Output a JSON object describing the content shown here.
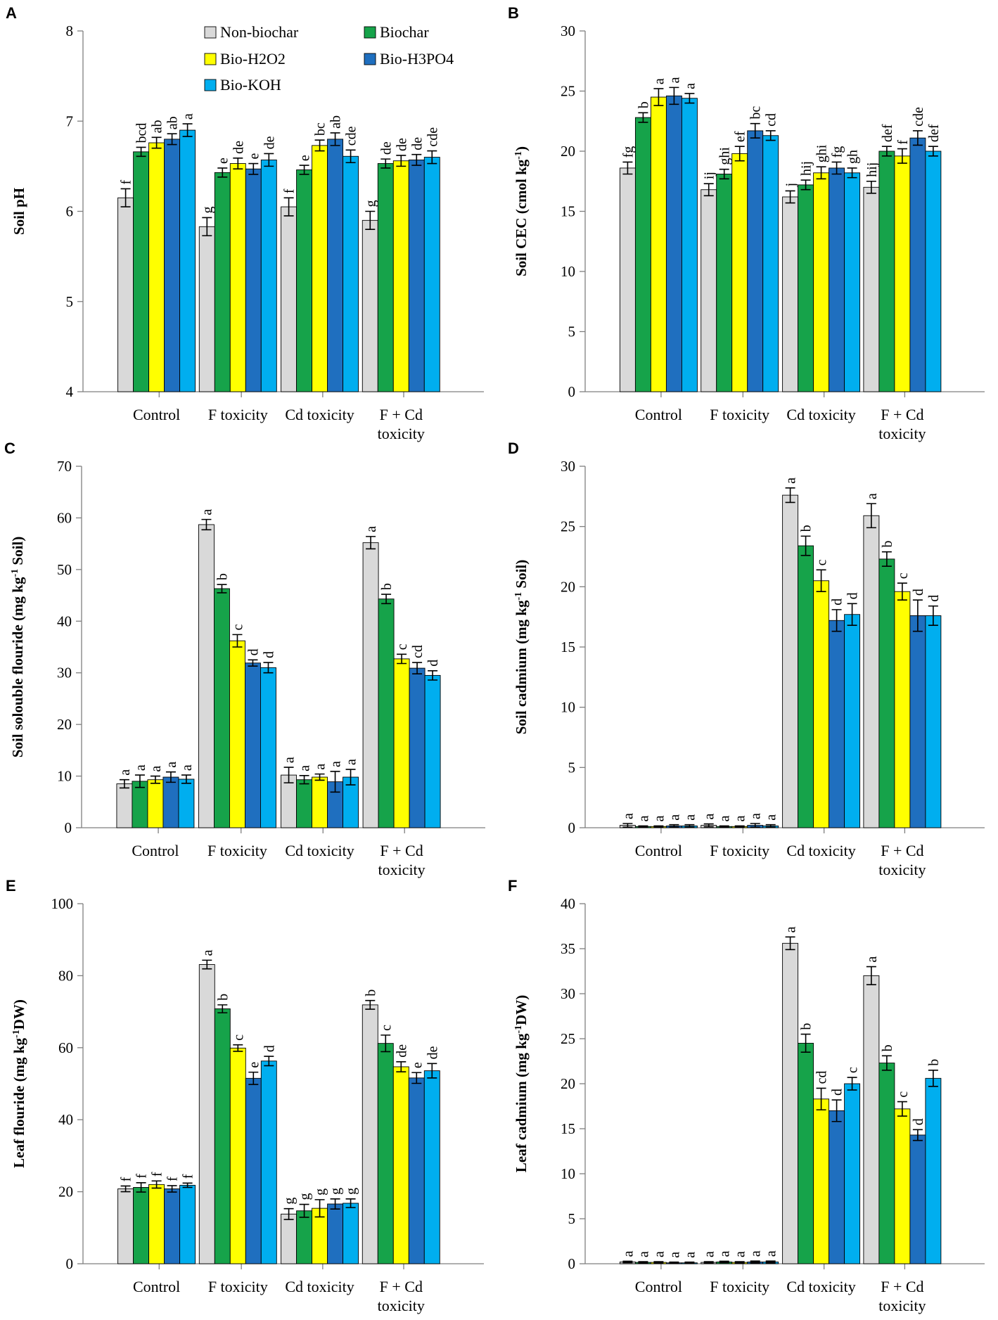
{
  "legend": [
    {
      "name": "Non-biochar",
      "color": "#d9d9d9"
    },
    {
      "name": "Biochar",
      "color": "#16a34a"
    },
    {
      "name": "Bio-H2O2",
      "color": "#ffff00"
    },
    {
      "name": "Bio-H3PO4",
      "color": "#1f6fbf"
    },
    {
      "name": "Bio-KOH",
      "color": "#00aeef"
    }
  ],
  "chart_data": [
    {
      "panel": "A",
      "type": "bar",
      "ylabel": "Soil pH",
      "ylim": [
        4,
        8
      ],
      "yticks": [
        "4",
        "5",
        "6",
        "7",
        "8"
      ],
      "categories": [
        [
          "Control"
        ],
        [
          "F toxicity"
        ],
        [
          "Cd toxicity"
        ],
        [
          "F + Cd",
          "toxicity"
        ]
      ],
      "series": [
        {
          "name": "Non-biochar",
          "values": [
            6.15,
            5.83,
            6.05,
            5.9
          ],
          "errors": [
            0.1,
            0.1,
            0.1,
            0.1
          ],
          "labels": [
            "f",
            "g",
            "f",
            "g"
          ]
        },
        {
          "name": "Biochar",
          "values": [
            6.66,
            6.43,
            6.46,
            6.53
          ],
          "errors": [
            0.05,
            0.05,
            0.05,
            0.05
          ],
          "labels": [
            "bcd",
            "e",
            "e",
            "de"
          ]
        },
        {
          "name": "Bio-H2O2",
          "values": [
            6.76,
            6.53,
            6.73,
            6.56
          ],
          "errors": [
            0.06,
            0.06,
            0.06,
            0.06
          ],
          "labels": [
            "ab",
            "de",
            "bc",
            "de"
          ]
        },
        {
          "name": "Bio-H3PO4",
          "values": [
            6.8,
            6.47,
            6.8,
            6.57
          ],
          "errors": [
            0.06,
            0.06,
            0.07,
            0.06
          ],
          "labels": [
            "ab",
            "e",
            "ab",
            "de"
          ]
        },
        {
          "name": "Bio-KOH",
          "values": [
            6.9,
            6.57,
            6.61,
            6.6
          ],
          "errors": [
            0.07,
            0.07,
            0.07,
            0.07
          ],
          "labels": [
            "a",
            "de",
            "cde",
            "cde"
          ]
        }
      ]
    },
    {
      "panel": "B",
      "type": "bar",
      "ylabel": "Soil CEC (cmol kg-1)",
      "ylim": [
        0,
        30
      ],
      "yticks": [
        "0",
        "5",
        "10",
        "15",
        "20",
        "25",
        "30"
      ],
      "categories": [
        [
          "Control"
        ],
        [
          "F toxicity"
        ],
        [
          "Cd toxicity"
        ],
        [
          "F + Cd",
          "toxicity"
        ]
      ],
      "series": [
        {
          "name": "Non-biochar",
          "values": [
            18.6,
            16.8,
            16.2,
            17.0
          ],
          "errors": [
            0.5,
            0.5,
            0.5,
            0.5
          ],
          "labels": [
            "fg",
            "ij",
            "j",
            "hij"
          ]
        },
        {
          "name": "Biochar",
          "values": [
            22.8,
            18.1,
            17.2,
            20.0
          ],
          "errors": [
            0.4,
            0.4,
            0.4,
            0.4
          ],
          "labels": [
            "b",
            "ghi",
            "hij",
            "def"
          ]
        },
        {
          "name": "Bio-H2O2",
          "values": [
            24.5,
            19.8,
            18.2,
            19.6
          ],
          "errors": [
            0.7,
            0.6,
            0.5,
            0.6
          ],
          "labels": [
            "a",
            "ef",
            "ghi",
            "f"
          ]
        },
        {
          "name": "Bio-H3PO4",
          "values": [
            24.6,
            21.7,
            18.6,
            21.1
          ],
          "errors": [
            0.7,
            0.6,
            0.5,
            0.6
          ],
          "labels": [
            "a",
            "bc",
            "fg",
            "cde"
          ]
        },
        {
          "name": "Bio-KOH",
          "values": [
            24.4,
            21.3,
            18.2,
            20.0
          ],
          "errors": [
            0.4,
            0.4,
            0.4,
            0.4
          ],
          "labels": [
            "a",
            "cd",
            "gh",
            "def"
          ]
        }
      ]
    },
    {
      "panel": "C",
      "type": "bar",
      "ylabel": "Soil soloublе flouride (mg kg-1 Soil)",
      "ylim": [
        0,
        70
      ],
      "yticks": [
        "0",
        "10",
        "20",
        "30",
        "40",
        "50",
        "60",
        "70"
      ],
      "categories": [
        [
          "Control"
        ],
        [
          "F toxicity"
        ],
        [
          "Cd toxicity"
        ],
        [
          "F + Cd",
          "toxicity"
        ]
      ],
      "series": [
        {
          "name": "Non-biochar",
          "values": [
            8.5,
            58.7,
            10.2,
            55.2
          ],
          "errors": [
            0.8,
            1.0,
            1.5,
            1.2
          ],
          "labels": [
            "a",
            "a",
            "a",
            "a"
          ]
        },
        {
          "name": "Biochar",
          "values": [
            9.0,
            46.3,
            9.3,
            44.3
          ],
          "errors": [
            1.2,
            0.8,
            0.8,
            0.9
          ],
          "labels": [
            "a",
            "b",
            "a",
            "b"
          ]
        },
        {
          "name": "Bio-H2O2",
          "values": [
            9.3,
            36.2,
            9.8,
            32.7
          ],
          "errors": [
            0.7,
            1.2,
            0.6,
            0.9
          ],
          "labels": [
            "a",
            "c",
            "a",
            "c"
          ]
        },
        {
          "name": "Bio-H3PO4",
          "values": [
            9.8,
            31.9,
            8.9,
            30.9
          ],
          "errors": [
            1.0,
            0.6,
            2.0,
            1.1
          ],
          "labels": [
            "a",
            "d",
            "a",
            "cd"
          ]
        },
        {
          "name": "Bio-KOH",
          "values": [
            9.4,
            31.0,
            9.8,
            29.5
          ],
          "errors": [
            0.8,
            1.0,
            1.5,
            0.9
          ],
          "labels": [
            "a",
            "d",
            "a",
            "d"
          ]
        }
      ]
    },
    {
      "panel": "D",
      "type": "bar",
      "ylabel": "Soil cadmium (mg kg-1 Soil)",
      "ylim": [
        0,
        30
      ],
      "yticks": [
        "0",
        "5",
        "10",
        "15",
        "20",
        "25",
        "30"
      ],
      "categories": [
        [
          "Control"
        ],
        [
          "F toxicity"
        ],
        [
          "Cd toxicity"
        ],
        [
          "F + Cd",
          "toxicity"
        ]
      ],
      "series": [
        {
          "name": "Non-biochar",
          "values": [
            0.2,
            0.2,
            27.6,
            25.9
          ],
          "errors": [
            0.15,
            0.12,
            0.6,
            1.0
          ],
          "labels": [
            "a",
            "a",
            "a",
            "a"
          ]
        },
        {
          "name": "Biochar",
          "values": [
            0.1,
            0.1,
            23.4,
            22.3
          ],
          "errors": [
            0.05,
            0.05,
            0.8,
            0.6
          ],
          "labels": [
            "a",
            "a",
            "b",
            "b"
          ]
        },
        {
          "name": "Bio-H2O2",
          "values": [
            0.1,
            0.1,
            20.5,
            19.6
          ],
          "errors": [
            0.05,
            0.05,
            0.9,
            0.7
          ],
          "labels": [
            "a",
            "a",
            "c",
            "c"
          ]
        },
        {
          "name": "Bio-H3PO4",
          "values": [
            0.15,
            0.2,
            17.2,
            17.6
          ],
          "errors": [
            0.1,
            0.15,
            0.9,
            1.3
          ],
          "labels": [
            "a",
            "a",
            "d",
            "d"
          ]
        },
        {
          "name": "Bio-KOH",
          "values": [
            0.15,
            0.15,
            17.7,
            17.6
          ],
          "errors": [
            0.1,
            0.1,
            0.9,
            0.8
          ],
          "labels": [
            "a",
            "a",
            "d",
            "d"
          ]
        }
      ]
    },
    {
      "panel": "E",
      "type": "bar",
      "ylabel": "Leaf  flouride (mg kg-1DW)",
      "ylim": [
        0,
        100
      ],
      "yticks": [
        "0",
        "20",
        "40",
        "60",
        "80",
        "100"
      ],
      "categories": [
        [
          "Control"
        ],
        [
          "F toxicity"
        ],
        [
          "Cd toxicity"
        ],
        [
          "F + Cd",
          "toxicity"
        ]
      ],
      "series": [
        {
          "name": "Non-biochar",
          "values": [
            20.8,
            83.1,
            13.8,
            71.9
          ],
          "errors": [
            0.8,
            1.2,
            1.5,
            1.2
          ],
          "labels": [
            "f",
            "a",
            "g",
            "b"
          ]
        },
        {
          "name": "Biochar",
          "values": [
            21.2,
            70.8,
            14.7,
            61.2
          ],
          "errors": [
            1.3,
            1.1,
            1.8,
            2.3
          ],
          "labels": [
            "f",
            "b",
            "g",
            "c"
          ]
        },
        {
          "name": "Bio-H2O2",
          "values": [
            22.0,
            59.9,
            15.4,
            54.7
          ],
          "errors": [
            1.0,
            0.9,
            2.4,
            1.4
          ],
          "labels": [
            "f",
            "c",
            "g",
            "de"
          ]
        },
        {
          "name": "Bio-H3PO4",
          "values": [
            20.8,
            51.5,
            16.6,
            51.6
          ],
          "errors": [
            0.9,
            1.7,
            1.4,
            1.5
          ],
          "labels": [
            "f",
            "e",
            "g",
            "e"
          ]
        },
        {
          "name": "Bio-KOH",
          "values": [
            21.8,
            56.3,
            16.8,
            53.6
          ],
          "errors": [
            0.6,
            1.3,
            1.2,
            2.0
          ],
          "labels": [
            "f",
            "d",
            "g",
            "de"
          ]
        }
      ]
    },
    {
      "panel": "F",
      "type": "bar",
      "ylabel": "Leaf cadmium (mg kg-1DW)",
      "ylim": [
        0,
        40
      ],
      "yticks": [
        "0",
        "5",
        "10",
        "15",
        "20",
        "25",
        "30",
        "35",
        "40"
      ],
      "categories": [
        [
          "Control"
        ],
        [
          "F toxicity"
        ],
        [
          "Cd toxicity"
        ],
        [
          "F + Cd",
          "toxicity"
        ]
      ],
      "series": [
        {
          "name": "Non-biochar",
          "values": [
            0.2,
            0.15,
            35.6,
            32.0
          ],
          "errors": [
            0.08,
            0.08,
            0.7,
            1.0
          ],
          "labels": [
            "a",
            "a",
            "a",
            "a"
          ]
        },
        {
          "name": "Biochar",
          "values": [
            0.15,
            0.2,
            24.5,
            22.3
          ],
          "errors": [
            0.08,
            0.08,
            1.0,
            0.8
          ],
          "labels": [
            "a",
            "a",
            "b",
            "b"
          ]
        },
        {
          "name": "Bio-H2O2",
          "values": [
            0.15,
            0.15,
            18.3,
            17.2
          ],
          "errors": [
            0.08,
            0.08,
            1.2,
            0.8
          ],
          "labels": [
            "a",
            "a",
            "cd",
            "c"
          ]
        },
        {
          "name": "Bio-H3PO4",
          "values": [
            0.1,
            0.2,
            17.0,
            14.3
          ],
          "errors": [
            0.08,
            0.1,
            1.2,
            0.6
          ],
          "labels": [
            "a",
            "a",
            "d",
            "d"
          ]
        },
        {
          "name": "Bio-KOH",
          "values": [
            0.1,
            0.2,
            20.0,
            20.6
          ],
          "errors": [
            0.08,
            0.1,
            0.7,
            0.9
          ],
          "labels": [
            "a",
            "a",
            "c",
            "b"
          ]
        }
      ]
    }
  ]
}
